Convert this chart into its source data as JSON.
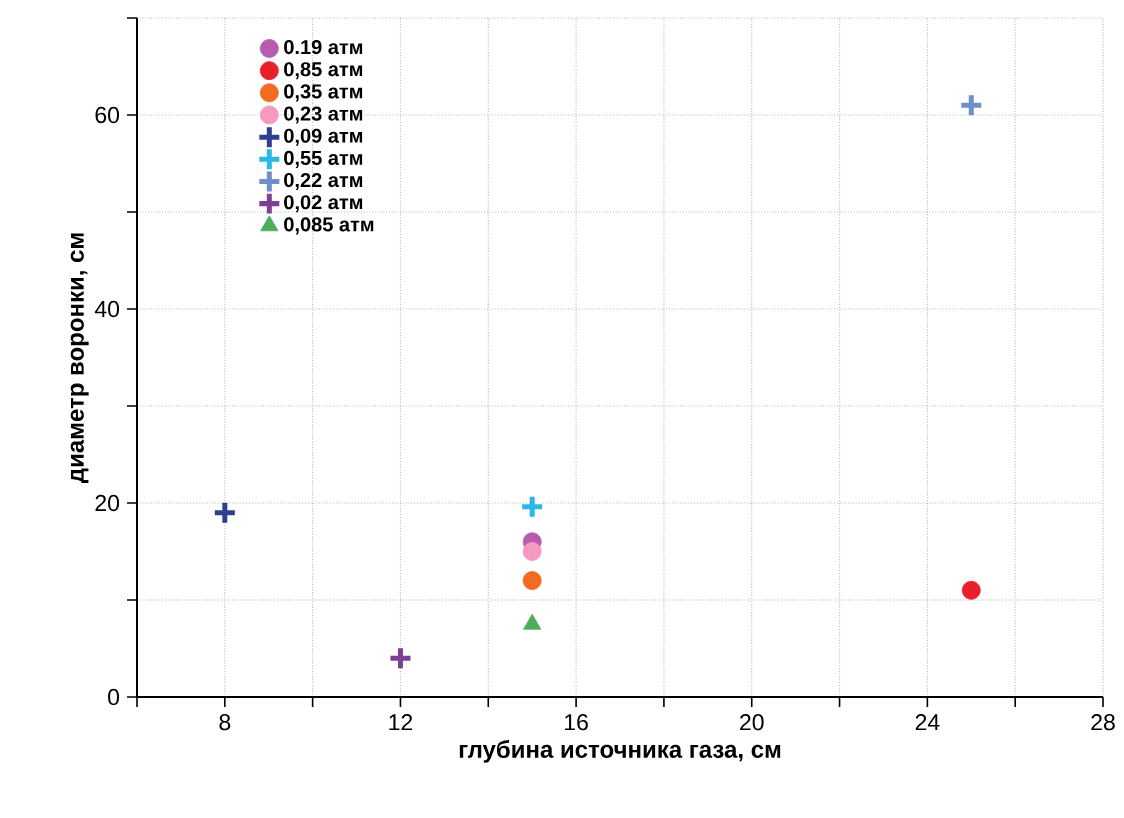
{
  "chart_data": {
    "type": "scatter",
    "xlabel": "глубина источника газа, см",
    "ylabel": "диаметр воронки, см",
    "xlim": [
      6,
      28
    ],
    "ylim": [
      0,
      70
    ],
    "xticks": [
      {
        "value": 6,
        "label": null
      },
      8,
      {
        "value": 10,
        "label": null
      },
      12,
      {
        "value": 14,
        "label": null
      },
      16,
      {
        "value": 18,
        "label": null
      },
      20,
      {
        "value": 22,
        "label": null
      },
      24,
      {
        "value": 26,
        "label": null
      },
      28
    ],
    "yticks": [
      0,
      {
        "value": 10,
        "label": null
      },
      20,
      {
        "value": 30,
        "label": null
      },
      40,
      {
        "value": 50,
        "label": null
      },
      60,
      {
        "value": 70,
        "label": null
      }
    ],
    "grid": true,
    "legend": "top left",
    "series": [
      {
        "name": "0.19 атм",
        "color": "#b85cad",
        "marker": "circle",
        "x": [
          15
        ],
        "values": [
          16
        ]
      },
      {
        "name": "0,85 атм",
        "color": "#e8202a",
        "marker": "circle",
        "x": [
          25
        ],
        "values": [
          11
        ]
      },
      {
        "name": "0,35 атм",
        "color": "#f26b21",
        "marker": "circle",
        "x": [
          15
        ],
        "values": [
          12
        ]
      },
      {
        "name": "0,23 атм",
        "color": "#f49ac1",
        "marker": "circle",
        "x": [
          15
        ],
        "values": [
          15
        ]
      },
      {
        "name": "0,09 атм",
        "color": "#2e3f8f",
        "marker": "cross",
        "x": [
          8
        ],
        "values": [
          19
        ]
      },
      {
        "name": "0,55 атм",
        "color": "#29b8e8",
        "marker": "cross",
        "x": [
          15
        ],
        "values": [
          19.6
        ]
      },
      {
        "name": "0,22 атм",
        "color": "#6f8fcb",
        "marker": "cross",
        "x": [
          25
        ],
        "values": [
          61
        ]
      },
      {
        "name": "0,02 атм",
        "color": "#7d3f98",
        "marker": "cross",
        "x": [
          12
        ],
        "values": [
          4
        ]
      },
      {
        "name": "0,085 атм",
        "color": "#4cae5b",
        "marker": "triangle",
        "x": [
          15
        ],
        "values": [
          7.5
        ]
      }
    ]
  }
}
